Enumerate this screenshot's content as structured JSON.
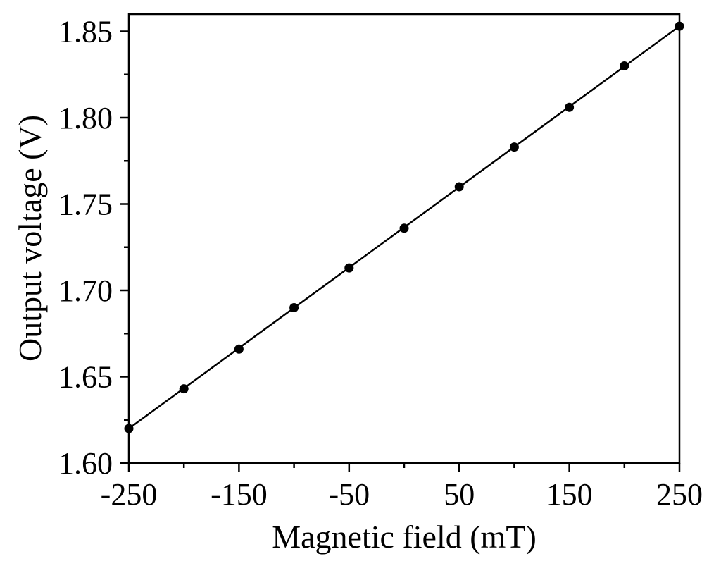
{
  "chart_data": {
    "type": "scatter",
    "title": "",
    "xlabel": "Magnetic field (mT)",
    "ylabel": "Output voltage (V)",
    "xlim": [
      -250,
      250
    ],
    "ylim": [
      1.6,
      1.86
    ],
    "x_ticks": [
      -250,
      -200,
      -150,
      -100,
      -50,
      0,
      50,
      100,
      150,
      200,
      250
    ],
    "x_tick_labels": [
      "-250",
      "-150",
      "-50",
      "50",
      "150",
      "250"
    ],
    "x_tick_label_values": [
      -250,
      -150,
      -50,
      50,
      150,
      250
    ],
    "y_ticks": [
      1.6,
      1.625,
      1.65,
      1.675,
      1.7,
      1.725,
      1.75,
      1.775,
      1.8,
      1.825,
      1.85
    ],
    "y_tick_labels": [
      "1.60",
      "1.65",
      "1.70",
      "1.75",
      "1.80",
      "1.85"
    ],
    "y_tick_label_values": [
      1.6,
      1.65,
      1.7,
      1.75,
      1.8,
      1.85
    ],
    "grid": false,
    "series": [
      {
        "x": [
          -250,
          -200,
          -150,
          -100,
          -50,
          0,
          50,
          100,
          150,
          200,
          250
        ],
        "y": [
          1.62,
          1.643,
          1.666,
          1.69,
          1.713,
          1.736,
          1.76,
          1.783,
          1.806,
          1.83,
          1.853
        ],
        "marker": "circle",
        "color": "#000000"
      }
    ],
    "fit_line": {
      "x": [
        -250,
        250
      ],
      "y": [
        1.62,
        1.853
      ],
      "color": "#000000"
    }
  }
}
